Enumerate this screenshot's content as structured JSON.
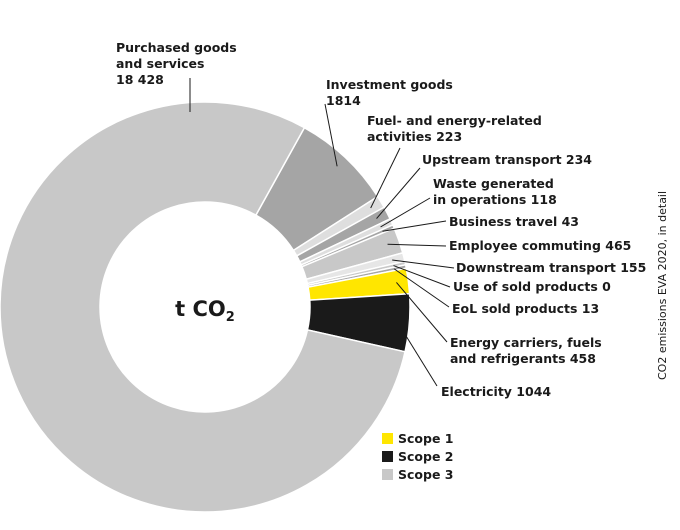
{
  "chart_data": {
    "type": "pie",
    "subtype": "donut",
    "center_label": {
      "main": "t CO",
      "subscript": "2"
    },
    "side_title": "CO2 emissions EVA 2020, in detail",
    "colors": {
      "scope1": "#ffe600",
      "scope2": "#1a1a1a",
      "scope3": "#c8c8c8",
      "scope3_dark": "#a5a5a5",
      "scope3_light": "#dedede"
    },
    "legend": [
      {
        "label": "Scope 1",
        "color": "#ffe600"
      },
      {
        "label": "Scope 2",
        "color": "#1a1a1a"
      },
      {
        "label": "Scope 3",
        "color": "#c8c8c8"
      }
    ],
    "slices": [
      {
        "key": "investment",
        "label_lines": [
          "Investment goods",
          "1814"
        ],
        "value": 1814,
        "scope": 3,
        "color": "#a5a5a5"
      },
      {
        "key": "fuel",
        "label_lines": [
          "Fuel- and energy-related",
          "activities  223"
        ],
        "value": 223,
        "scope": 3,
        "color": "#dedede"
      },
      {
        "key": "upstream",
        "label_lines": [
          "Upstream transport  234"
        ],
        "value": 234,
        "scope": 3,
        "color": "#a5a5a5"
      },
      {
        "key": "waste",
        "label_lines": [
          "Waste generated",
          "in operations  118"
        ],
        "value": 118,
        "scope": 3,
        "color": "#dedede"
      },
      {
        "key": "travel",
        "label_lines": [
          "Business travel  43"
        ],
        "value": 43,
        "scope": 3,
        "color": "#a5a5a5"
      },
      {
        "key": "commuting",
        "label_lines": [
          "Employee commuting  465"
        ],
        "value": 465,
        "scope": 3,
        "color": "#c8c8c8"
      },
      {
        "key": "downstream",
        "label_lines": [
          "Downstream transport  155"
        ],
        "value": 155,
        "scope": 3,
        "color": "#e6e6e6"
      },
      {
        "key": "use",
        "label_lines": [
          "Use of sold products 0"
        ],
        "value": 0,
        "scope": 3,
        "color": "#c8c8c8"
      },
      {
        "key": "eol",
        "label_lines": [
          "EoL sold products  13"
        ],
        "value": 13,
        "scope": 3,
        "color": "#a5a5a5"
      },
      {
        "key": "energy",
        "label_lines": [
          "Energy carriers, fuels",
          "and refrigerants  458"
        ],
        "value": 458,
        "scope": 1,
        "color": "#ffe600"
      },
      {
        "key": "electricity",
        "label_lines": [
          "Electricity 1044"
        ],
        "value": 1044,
        "scope": 2,
        "color": "#1a1a1a"
      },
      {
        "key": "purchased",
        "label_lines": [
          "Purchased goods",
          "and services",
          "18 428"
        ],
        "value": 18428,
        "scope": 3,
        "color": "#c8c8c8"
      }
    ]
  }
}
